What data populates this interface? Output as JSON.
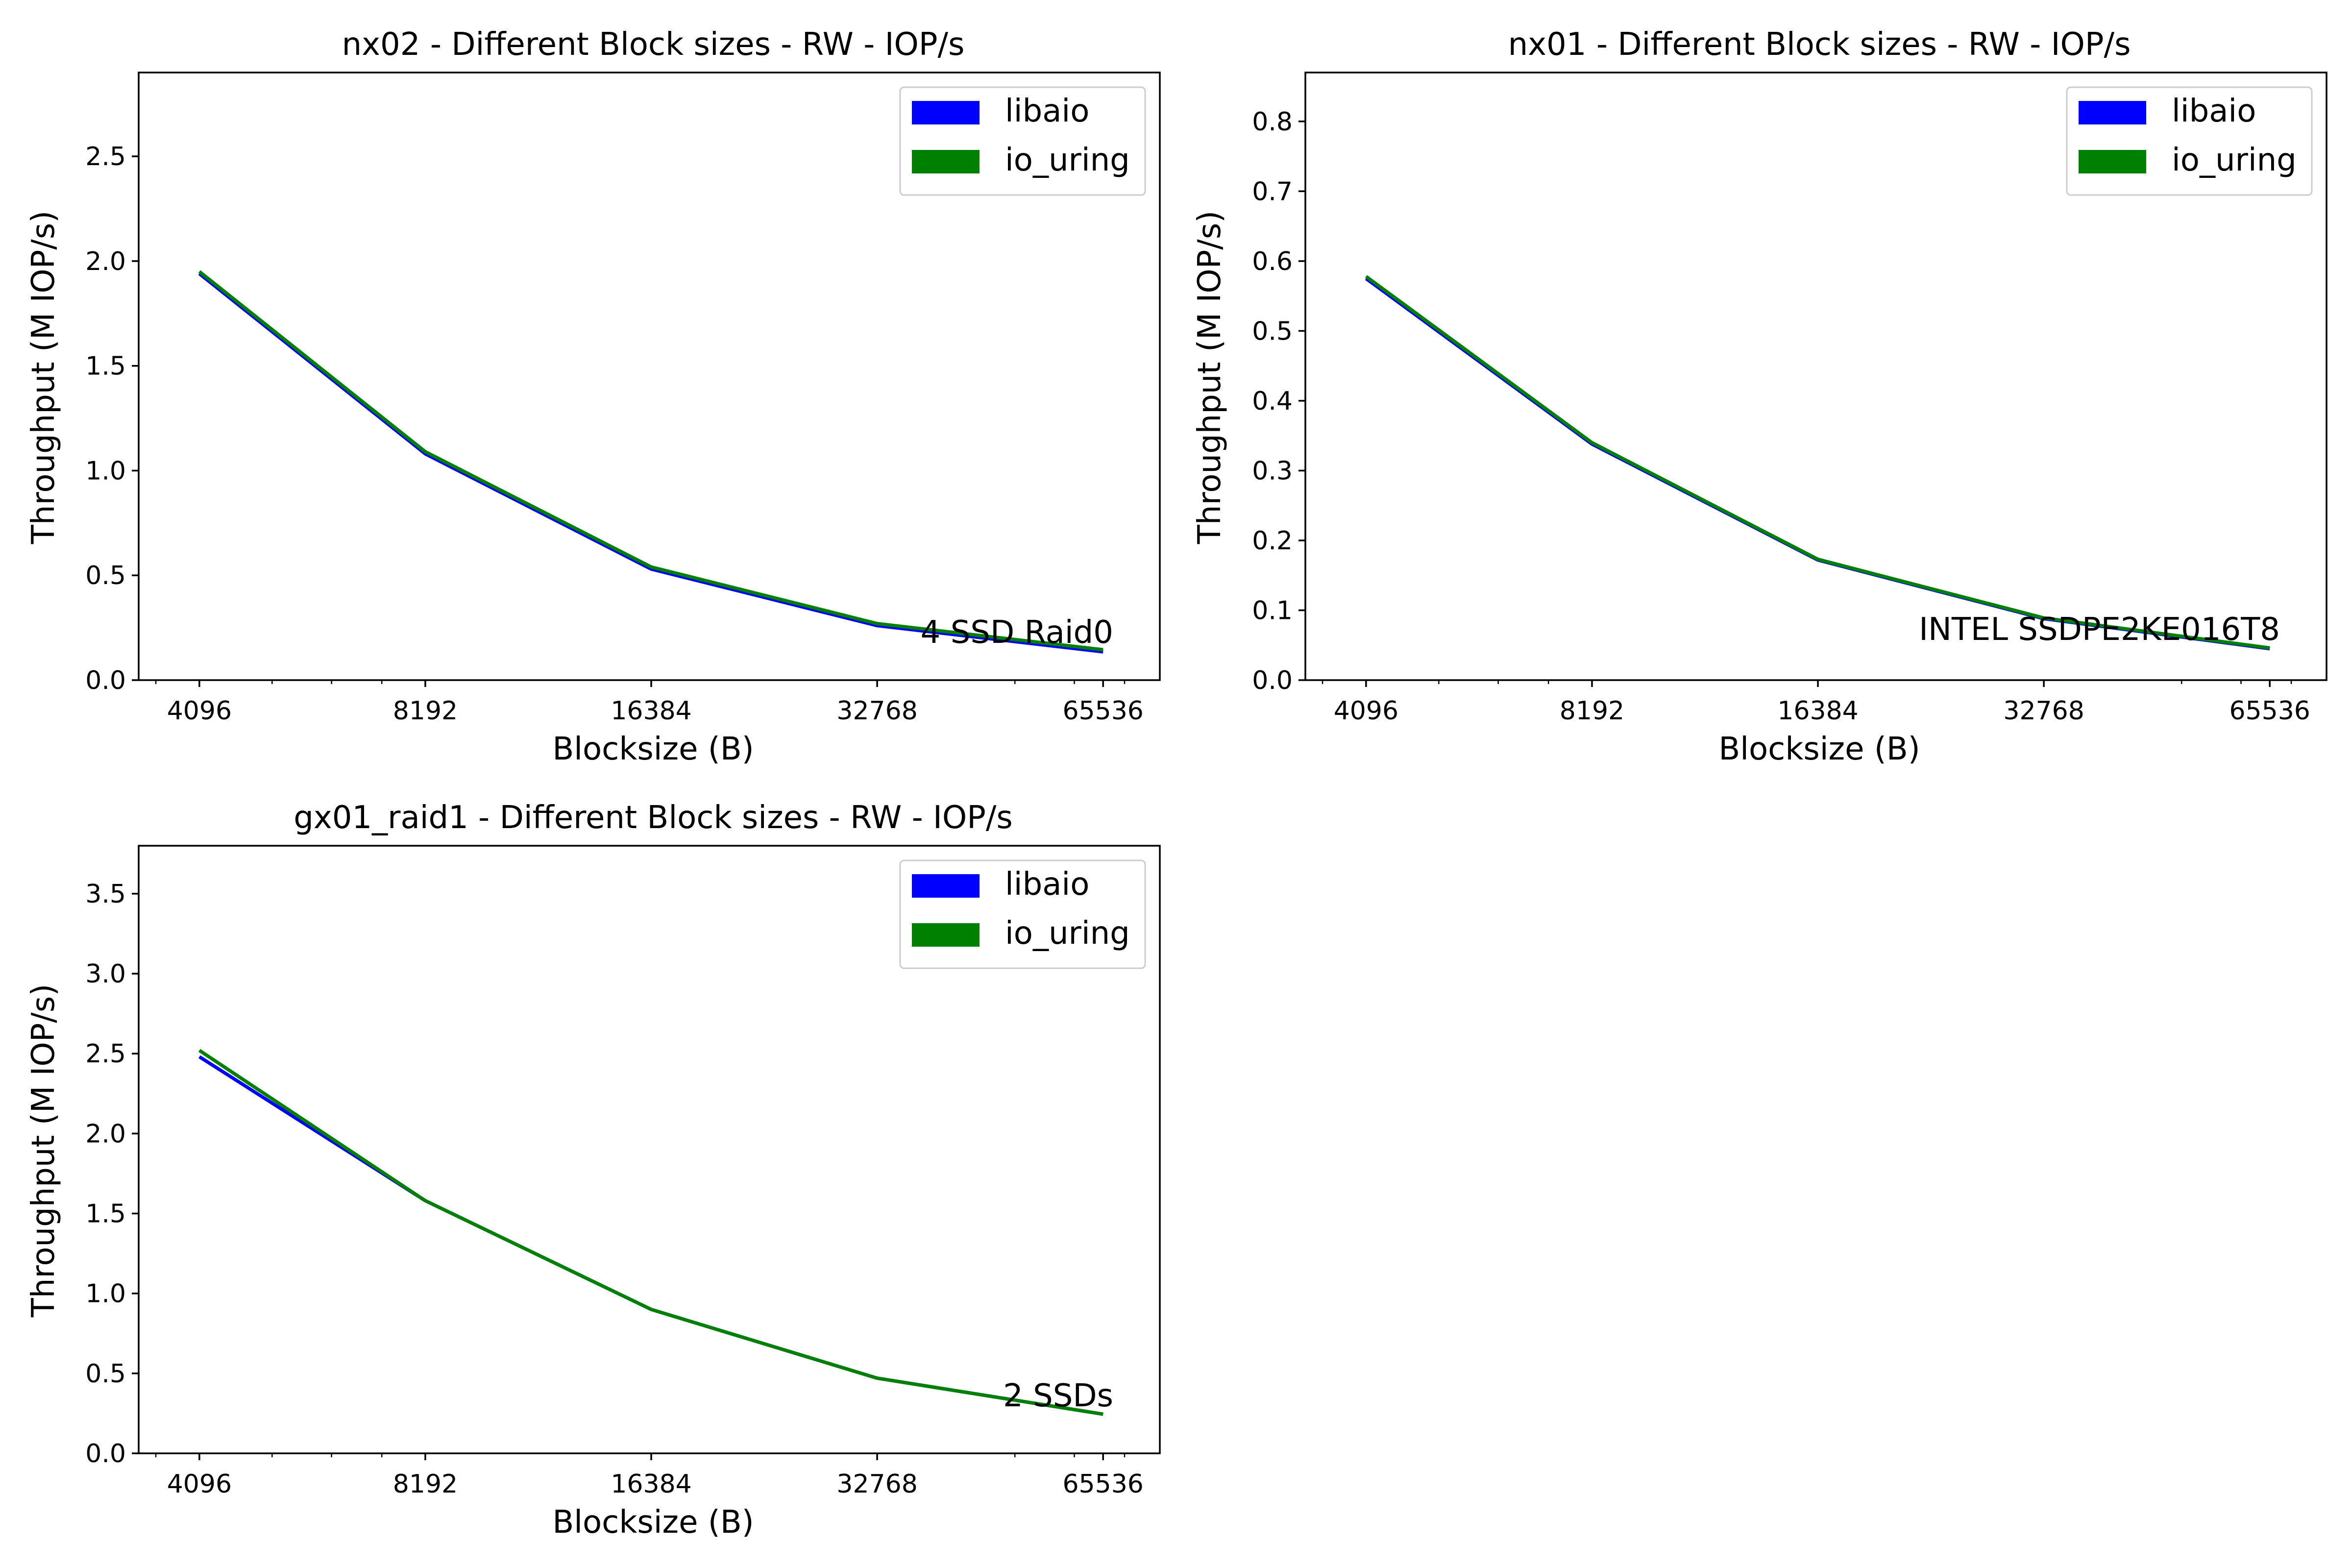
{
  "chart_data": [
    {
      "type": "line",
      "title": "nx02 - Different Block sizes - RW - IOP/s",
      "xlabel": "Blocksize (B)",
      "ylabel": "Throughput (M IOP/s)",
      "xscale": "log2",
      "xlim": [
        3400,
        78000
      ],
      "ylim": [
        0,
        2.9
      ],
      "x": [
        4096,
        8192,
        16384,
        32768,
        65536
      ],
      "xticks": [
        "4096",
        "8192",
        "16384",
        "32768",
        "65536"
      ],
      "yticks": [
        0.0,
        0.5,
        1.0,
        1.5,
        2.0,
        2.5
      ],
      "ytick_labels": [
        "0.0",
        "0.5",
        "1.0",
        "1.5",
        "2.0",
        "2.5"
      ],
      "series": [
        {
          "name": "libaio",
          "color": "#0000ff",
          "values": [
            1.94,
            1.08,
            0.53,
            0.26,
            0.135
          ]
        },
        {
          "name": "io_uring",
          "color": "#008000",
          "values": [
            1.95,
            1.09,
            0.54,
            0.27,
            0.145
          ]
        }
      ],
      "legend": "top-right",
      "annotation": "4 SSD Raid0",
      "grid": false
    },
    {
      "type": "line",
      "title": "nx01 - Different Block sizes - RW - IOP/s",
      "xlabel": "Blocksize (B)",
      "ylabel": "Throughput (M IOP/s)",
      "xscale": "log2",
      "xlim": [
        3400,
        78000
      ],
      "ylim": [
        0,
        0.87
      ],
      "x": [
        4096,
        8192,
        16384,
        32768,
        65536
      ],
      "xticks": [
        "4096",
        "8192",
        "16384",
        "32768",
        "65536"
      ],
      "yticks": [
        0.0,
        0.1,
        0.2,
        0.3,
        0.4,
        0.5,
        0.6,
        0.7,
        0.8
      ],
      "ytick_labels": [
        "0.0",
        "0.1",
        "0.2",
        "0.3",
        "0.4",
        "0.5",
        "0.6",
        "0.7",
        "0.8"
      ],
      "series": [
        {
          "name": "libaio",
          "color": "#0000ff",
          "values": [
            0.575,
            0.338,
            0.172,
            0.088,
            0.045
          ]
        },
        {
          "name": "io_uring",
          "color": "#008000",
          "values": [
            0.578,
            0.34,
            0.173,
            0.089,
            0.046
          ]
        }
      ],
      "legend": "top-right",
      "annotation": "INTEL SSDPE2KE016T8",
      "grid": false
    },
    {
      "type": "line",
      "title": "gx01_raid1 - Different Block sizes - RW - IOP/s",
      "xlabel": "Blocksize (B)",
      "ylabel": "Throughput (M IOP/s)",
      "xscale": "log2",
      "xlim": [
        3400,
        78000
      ],
      "ylim": [
        0,
        3.8
      ],
      "x": [
        4096,
        8192,
        16384,
        32768,
        65536
      ],
      "xticks": [
        "4096",
        "8192",
        "16384",
        "32768",
        "65536"
      ],
      "yticks": [
        0.0,
        0.5,
        1.0,
        1.5,
        2.0,
        2.5,
        3.0,
        3.5
      ],
      "ytick_labels": [
        "0.0",
        "0.5",
        "1.0",
        "1.5",
        "2.0",
        "2.5",
        "3.0",
        "3.5"
      ],
      "series": [
        {
          "name": "libaio",
          "color": "#0000ff",
          "values": [
            2.48,
            1.58,
            0.9,
            0.47,
            0.245
          ]
        },
        {
          "name": "io_uring",
          "color": "#008000",
          "values": [
            2.52,
            1.58,
            0.9,
            0.47,
            0.245
          ]
        }
      ],
      "legend": "top-right",
      "annotation": "2 SSDs",
      "grid": false
    }
  ]
}
